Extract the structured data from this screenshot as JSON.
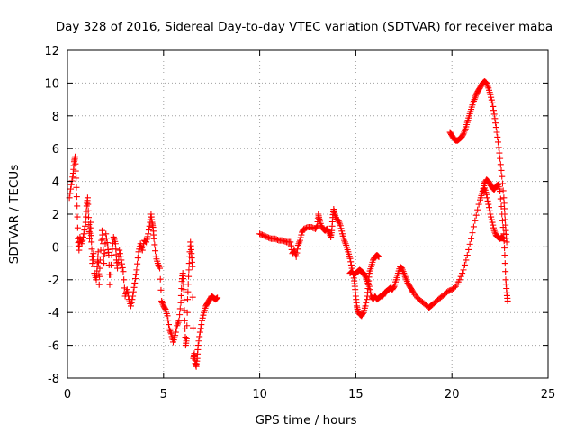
{
  "chart_data": {
    "type": "scatter",
    "title": "Day 328 of 2016, Sidereal Day-to-day VTEC variation (SDTVAR) for receiver maba",
    "xlabel": "GPS time / hours",
    "ylabel": "SDTVAR / TECUs",
    "xlim": [
      0,
      25
    ],
    "ylim": [
      -8,
      12
    ],
    "xticks": [
      0,
      5,
      10,
      15,
      20,
      25
    ],
    "yticks": [
      -8,
      -6,
      -4,
      -2,
      0,
      2,
      4,
      6,
      8,
      10,
      12
    ],
    "grid": true,
    "marker": "+",
    "color": "#ff0000",
    "series": [
      {
        "name": "SDTVAR",
        "segments": [
          [
            [
              0.1,
              3.0
            ],
            [
              0.2,
              3.8
            ],
            [
              0.3,
              4.5
            ],
            [
              0.35,
              5.2
            ],
            [
              0.4,
              5.5
            ],
            [
              0.45,
              4.2
            ],
            [
              0.5,
              2.5
            ],
            [
              0.55,
              0.5
            ],
            [
              0.6,
              -0.2
            ],
            [
              0.65,
              0.6
            ],
            [
              0.75,
              0.2
            ],
            [
              0.85,
              0.8
            ],
            [
              0.95,
              1.5
            ],
            [
              1.0,
              2.5
            ],
            [
              1.05,
              3.0
            ],
            [
              1.1,
              1.8
            ],
            [
              1.15,
              0.5
            ],
            [
              1.2,
              1.5
            ],
            [
              1.25,
              0.3
            ],
            [
              1.3,
              -1.0
            ],
            [
              1.35,
              -0.4
            ],
            [
              1.4,
              -1.6
            ],
            [
              1.5,
              -2.0
            ],
            [
              1.55,
              -1.2
            ],
            [
              1.6,
              -0.3
            ],
            [
              1.65,
              -2.3
            ],
            [
              1.7,
              -0.8
            ],
            [
              1.8,
              1.0
            ],
            [
              1.85,
              0.2
            ],
            [
              1.9,
              -1.0
            ],
            [
              2.0,
              0.8
            ],
            [
              2.1,
              0.0
            ],
            [
              2.15,
              -0.5
            ],
            [
              2.2,
              -2.3
            ],
            [
              2.3,
              -0.5
            ],
            [
              2.4,
              0.6
            ],
            [
              2.5,
              0.2
            ],
            [
              2.55,
              -0.8
            ],
            [
              2.6,
              -1.3
            ],
            [
              2.7,
              -0.2
            ],
            [
              2.8,
              -0.8
            ],
            [
              2.9,
              -1.5
            ],
            [
              3.0,
              -3.0
            ],
            [
              3.1,
              -2.6
            ],
            [
              3.2,
              -3.2
            ],
            [
              3.3,
              -3.6
            ],
            [
              3.4,
              -3.0
            ],
            [
              3.5,
              -2.2
            ],
            [
              3.6,
              -1.4
            ],
            [
              3.7,
              -0.3
            ],
            [
              3.8,
              0.2
            ],
            [
              3.9,
              -0.2
            ],
            [
              4.0,
              0.4
            ],
            [
              4.1,
              0.3
            ],
            [
              4.2,
              0.8
            ],
            [
              4.3,
              1.5
            ],
            [
              4.35,
              2.0
            ],
            [
              4.4,
              1.5
            ],
            [
              4.45,
              1.2
            ],
            [
              4.5,
              0.5
            ],
            [
              4.6,
              -0.6
            ],
            [
              4.7,
              -1.0
            ],
            [
              4.8,
              -1.3
            ],
            [
              4.9,
              -3.3
            ],
            [
              5.0,
              -3.6
            ],
            [
              5.1,
              -3.8
            ],
            [
              5.2,
              -4.2
            ],
            [
              5.3,
              -5.0
            ],
            [
              5.4,
              -5.3
            ],
            [
              5.5,
              -5.8
            ],
            [
              5.6,
              -5.4
            ],
            [
              5.7,
              -4.8
            ],
            [
              5.8,
              -4.5
            ],
            [
              5.9,
              -3.4
            ],
            [
              5.95,
              -2.1
            ],
            [
              6.0,
              -1.6
            ],
            [
              6.05,
              -2.6
            ],
            [
              6.1,
              -4.5
            ],
            [
              6.15,
              -6.0
            ],
            [
              6.2,
              -5.6
            ],
            [
              6.25,
              -3.2
            ],
            [
              6.3,
              -1.8
            ],
            [
              6.35,
              -0.6
            ],
            [
              6.4,
              0.3
            ],
            [
              6.45,
              -0.4
            ],
            [
              6.5,
              -1.2
            ],
            [
              6.55,
              -6.8
            ],
            [
              6.6,
              -6.5
            ],
            [
              6.65,
              -7.1
            ],
            [
              6.7,
              -7.3
            ],
            [
              6.75,
              -6.8
            ],
            [
              6.8,
              -6.0
            ],
            [
              6.9,
              -5.2
            ],
            [
              7.0,
              -4.5
            ],
            [
              7.1,
              -4.0
            ],
            [
              7.2,
              -3.6
            ],
            [
              7.3,
              -3.4
            ],
            [
              7.4,
              -3.2
            ],
            [
              7.5,
              -3.0
            ],
            [
              7.6,
              -3.1
            ],
            [
              7.7,
              -3.2
            ],
            [
              7.8,
              -3.1
            ]
          ],
          [
            [
              10.0,
              0.8
            ],
            [
              10.2,
              0.7
            ],
            [
              10.4,
              0.6
            ],
            [
              10.6,
              0.5
            ],
            [
              10.8,
              0.5
            ],
            [
              11.0,
              0.4
            ],
            [
              11.2,
              0.4
            ],
            [
              11.4,
              0.3
            ],
            [
              11.6,
              0.3
            ],
            [
              11.7,
              -0.4
            ],
            [
              11.8,
              -0.2
            ],
            [
              11.9,
              -0.6
            ],
            [
              12.0,
              0.1
            ],
            [
              12.1,
              0.4
            ],
            [
              12.2,
              0.9
            ],
            [
              12.3,
              1.1
            ],
            [
              12.5,
              1.2
            ],
            [
              12.7,
              1.2
            ],
            [
              12.9,
              1.1
            ],
            [
              13.0,
              1.3
            ],
            [
              13.05,
              2.0
            ],
            [
              13.1,
              1.7
            ],
            [
              13.2,
              1.3
            ],
            [
              13.3,
              1.1
            ],
            [
              13.4,
              1.0
            ],
            [
              13.5,
              1.1
            ],
            [
              13.6,
              0.9
            ],
            [
              13.7,
              0.6
            ],
            [
              13.75,
              1.0
            ],
            [
              13.8,
              1.8
            ],
            [
              13.85,
              2.3
            ],
            [
              13.9,
              2.0
            ],
            [
              14.0,
              1.7
            ],
            [
              14.1,
              1.6
            ],
            [
              14.2,
              1.3
            ],
            [
              14.3,
              0.8
            ],
            [
              14.4,
              0.4
            ],
            [
              14.5,
              0.1
            ],
            [
              14.6,
              -0.3
            ],
            [
              14.7,
              -0.7
            ],
            [
              14.8,
              -1.3
            ],
            [
              14.9,
              -1.9
            ],
            [
              14.95,
              -2.4
            ],
            [
              15.0,
              -3.0
            ],
            [
              15.05,
              -3.6
            ],
            [
              15.1,
              -3.9
            ],
            [
              15.2,
              -4.1
            ],
            [
              15.3,
              -4.2
            ],
            [
              15.4,
              -4.0
            ],
            [
              15.5,
              -3.6
            ],
            [
              15.6,
              -3.0
            ],
            [
              15.65,
              -2.3
            ],
            [
              15.7,
              -1.6
            ],
            [
              15.8,
              -1.2
            ],
            [
              15.9,
              -0.8
            ],
            [
              16.0,
              -0.6
            ],
            [
              16.1,
              -0.5
            ],
            [
              16.2,
              -0.6
            ]
          ],
          [
            [
              14.7,
              -1.6
            ],
            [
              14.8,
              -1.5
            ],
            [
              14.9,
              -1.7
            ],
            [
              15.0,
              -1.6
            ],
            [
              15.1,
              -1.5
            ],
            [
              15.2,
              -1.4
            ],
            [
              15.3,
              -1.5
            ],
            [
              15.4,
              -1.6
            ],
            [
              15.5,
              -1.8
            ],
            [
              15.6,
              -2.1
            ],
            [
              15.7,
              -2.4
            ],
            [
              15.8,
              -3.0
            ],
            [
              15.9,
              -3.2
            ],
            [
              16.0,
              -3.0
            ],
            [
              16.1,
              -3.2
            ],
            [
              16.2,
              -3.1
            ],
            [
              16.3,
              -3.0
            ],
            [
              16.4,
              -3.0
            ],
            [
              16.5,
              -2.8
            ],
            [
              16.6,
              -2.7
            ],
            [
              16.7,
              -2.6
            ],
            [
              16.8,
              -2.5
            ],
            [
              16.9,
              -2.6
            ],
            [
              17.0,
              -2.4
            ],
            [
              17.1,
              -2.0
            ],
            [
              17.2,
              -1.6
            ],
            [
              17.3,
              -1.2
            ],
            [
              17.4,
              -1.3
            ],
            [
              17.5,
              -1.6
            ],
            [
              17.6,
              -1.9
            ],
            [
              17.7,
              -2.2
            ],
            [
              17.8,
              -2.4
            ],
            [
              17.9,
              -2.6
            ],
            [
              18.0,
              -2.8
            ],
            [
              18.2,
              -3.1
            ],
            [
              18.4,
              -3.3
            ],
            [
              18.6,
              -3.5
            ],
            [
              18.8,
              -3.7
            ],
            [
              18.9,
              -3.6
            ],
            [
              19.0,
              -3.5
            ],
            [
              19.2,
              -3.3
            ],
            [
              19.4,
              -3.1
            ],
            [
              19.6,
              -2.9
            ],
            [
              19.8,
              -2.7
            ],
            [
              20.0,
              -2.6
            ],
            [
              20.2,
              -2.4
            ],
            [
              20.4,
              -2.0
            ],
            [
              20.6,
              -1.4
            ],
            [
              20.8,
              -0.5
            ],
            [
              21.0,
              0.5
            ],
            [
              21.2,
              1.6
            ],
            [
              21.4,
              2.6
            ],
            [
              21.6,
              3.4
            ],
            [
              21.7,
              3.9
            ],
            [
              21.8,
              4.1
            ],
            [
              21.9,
              4.0
            ],
            [
              22.0,
              3.8
            ],
            [
              22.1,
              3.6
            ],
            [
              22.2,
              3.5
            ],
            [
              22.3,
              3.7
            ],
            [
              22.4,
              3.8
            ],
            [
              22.5,
              3.4
            ],
            [
              22.6,
              2.0
            ],
            [
              22.7,
              0.8
            ],
            [
              22.75,
              -0.5
            ],
            [
              22.8,
              -2.0
            ],
            [
              22.85,
              -2.8
            ],
            [
              22.9,
              -3.3
            ]
          ],
          [
            [
              19.9,
              7.0
            ],
            [
              20.0,
              6.8
            ],
            [
              20.1,
              6.6
            ],
            [
              20.2,
              6.5
            ],
            [
              20.3,
              6.5
            ],
            [
              20.4,
              6.6
            ],
            [
              20.5,
              6.7
            ],
            [
              20.6,
              6.9
            ],
            [
              20.7,
              7.2
            ],
            [
              20.8,
              7.6
            ],
            [
              20.9,
              8.0
            ],
            [
              21.0,
              8.4
            ],
            [
              21.1,
              8.8
            ],
            [
              21.2,
              9.1
            ],
            [
              21.3,
              9.4
            ],
            [
              21.4,
              9.6
            ],
            [
              21.5,
              9.8
            ],
            [
              21.6,
              10.0
            ],
            [
              21.7,
              10.1
            ],
            [
              21.8,
              10.0
            ],
            [
              21.9,
              9.7
            ],
            [
              22.0,
              9.3
            ],
            [
              22.1,
              8.8
            ],
            [
              22.2,
              8.1
            ],
            [
              22.3,
              7.3
            ],
            [
              22.4,
              6.4
            ],
            [
              22.5,
              5.4
            ],
            [
              22.6,
              4.3
            ],
            [
              22.7,
              3.0
            ],
            [
              22.75,
              2.0
            ],
            [
              22.8,
              1.0
            ],
            [
              22.85,
              0.3
            ]
          ],
          [
            [
              21.5,
              3.0
            ],
            [
              21.6,
              3.4
            ],
            [
              21.7,
              3.6
            ],
            [
              21.8,
              3.2
            ],
            [
              21.9,
              2.6
            ],
            [
              22.0,
              2.0
            ],
            [
              22.1,
              1.5
            ],
            [
              22.2,
              1.0
            ],
            [
              22.3,
              0.7
            ],
            [
              22.4,
              0.6
            ],
            [
              22.5,
              0.5
            ],
            [
              22.6,
              0.6
            ],
            [
              22.7,
              0.5
            ]
          ]
        ]
      }
    ]
  }
}
